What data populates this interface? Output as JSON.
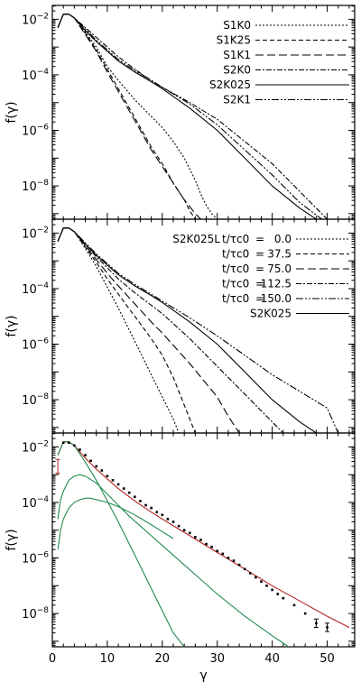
{
  "chart_data": [
    {
      "type": "line",
      "panel": "top",
      "ylabel": "f(γ)",
      "xlabel": "",
      "xlim": [
        0,
        55
      ],
      "ylim_log10": [
        -9.2,
        -1.5
      ],
      "yscale": "log",
      "yticks": [
        "10^-2",
        "10^-4",
        "10^-6",
        "10^-8"
      ],
      "yticks_exp": [
        -2,
        -4,
        -6,
        -8
      ],
      "legend_position": "top-right",
      "series": [
        {
          "name": "S1K0",
          "dash": "2,2",
          "x": [
            1,
            2,
            3,
            4,
            6,
            8,
            10,
            12,
            15,
            18,
            20,
            22,
            24,
            26,
            27,
            28,
            29,
            30
          ],
          "log10y": [
            -2.3,
            -1.82,
            -1.82,
            -1.95,
            -2.45,
            -3.0,
            -3.7,
            -4.2,
            -4.9,
            -5.5,
            -5.9,
            -6.4,
            -7.0,
            -7.8,
            -8.3,
            -8.7,
            -9.0,
            -9.2
          ]
        },
        {
          "name": "S1K25",
          "dash": "5,3",
          "x": [
            1,
            2,
            3,
            4,
            6,
            8,
            10,
            12,
            14,
            16,
            18,
            20,
            22,
            24,
            25,
            26
          ],
          "log10y": [
            -2.3,
            -1.82,
            -1.82,
            -1.95,
            -2.5,
            -3.1,
            -3.8,
            -4.5,
            -5.2,
            -5.9,
            -6.6,
            -7.2,
            -7.9,
            -8.5,
            -8.9,
            -9.2
          ]
        },
        {
          "name": "S1K1",
          "dash": "9,4",
          "x": [
            1,
            2,
            3,
            4,
            6,
            8,
            10,
            12,
            14,
            16,
            18,
            20,
            22,
            24,
            26,
            27
          ],
          "log10y": [
            -2.3,
            -1.82,
            -1.82,
            -1.95,
            -2.55,
            -3.15,
            -3.9,
            -4.6,
            -5.3,
            -6.0,
            -6.7,
            -7.3,
            -7.9,
            -8.5,
            -9.0,
            -9.2
          ]
        },
        {
          "name": "S2K0",
          "dash": "6,2,2,2",
          "x": [
            1,
            2,
            3,
            4,
            6,
            8,
            10,
            12,
            15,
            18,
            20,
            25,
            30,
            35,
            40,
            45,
            50
          ],
          "log10y": [
            -2.3,
            -1.82,
            -1.82,
            -1.95,
            -2.3,
            -2.65,
            -3.0,
            -3.35,
            -3.8,
            -4.2,
            -4.45,
            -5.0,
            -5.6,
            -6.4,
            -7.2,
            -8.2,
            -9.2
          ]
        },
        {
          "name": "S2K025",
          "dash": "none",
          "x": [
            1,
            2,
            3,
            4,
            6,
            8,
            10,
            12,
            15,
            18,
            20,
            25,
            30,
            35,
            40,
            45,
            48
          ],
          "log10y": [
            -2.3,
            -1.82,
            -1.82,
            -1.95,
            -2.4,
            -2.8,
            -3.15,
            -3.5,
            -3.9,
            -4.25,
            -4.5,
            -5.2,
            -6.0,
            -7.0,
            -8.0,
            -8.8,
            -9.2
          ]
        },
        {
          "name": "S2K1",
          "dash": "8,2,2,2,2,2",
          "x": [
            1,
            2,
            3,
            4,
            6,
            8,
            10,
            12,
            15,
            18,
            20,
            25,
            30,
            35,
            40,
            45,
            49
          ],
          "log10y": [
            -2.3,
            -1.82,
            -1.82,
            -1.95,
            -2.35,
            -2.75,
            -3.1,
            -3.45,
            -3.85,
            -4.2,
            -4.45,
            -5.05,
            -5.8,
            -6.7,
            -7.6,
            -8.6,
            -9.2
          ]
        }
      ]
    },
    {
      "type": "line",
      "panel": "middle",
      "ylabel": "f(γ)",
      "xlabel": "",
      "xlim": [
        0,
        55
      ],
      "ylim_log10": [
        -9.2,
        -1.5
      ],
      "yscale": "log",
      "yticks": [
        "10^-2",
        "10^-4",
        "10^-6",
        "10^-8"
      ],
      "yticks_exp": [
        -2,
        -4,
        -6,
        -8
      ],
      "legend_title": "S2K025L",
      "legend_position": "top-right",
      "series": [
        {
          "name": "t/τc0 = 0.0",
          "label_lhs": "t/τc0",
          "label_rhs": "0.0",
          "dash": "2,2",
          "x": [
            1,
            2,
            3,
            4,
            6,
            8,
            10,
            12,
            14,
            16,
            18,
            20,
            22,
            23
          ],
          "log10y": [
            -2.3,
            -1.82,
            -1.82,
            -1.95,
            -2.55,
            -3.2,
            -3.95,
            -4.7,
            -5.5,
            -6.3,
            -7.1,
            -7.9,
            -8.7,
            -9.2
          ]
        },
        {
          "name": "t/τc0 = 37.5",
          "label_lhs": "t/τc0",
          "label_rhs": "37.5",
          "dash": "5,3",
          "x": [
            1,
            2,
            3,
            4,
            6,
            8,
            10,
            12,
            15,
            18,
            20,
            22,
            24,
            26
          ],
          "log10y": [
            -2.3,
            -1.82,
            -1.82,
            -1.95,
            -2.5,
            -3.05,
            -3.65,
            -4.2,
            -5.0,
            -5.8,
            -6.4,
            -7.2,
            -8.2,
            -9.2
          ]
        },
        {
          "name": "t/τc0 = 75.0",
          "label_lhs": "t/τc0",
          "label_rhs": "75.0",
          "dash": "9,4",
          "x": [
            1,
            2,
            3,
            4,
            6,
            8,
            10,
            12,
            15,
            18,
            20,
            25,
            30,
            32,
            34
          ],
          "log10y": [
            -2.3,
            -1.82,
            -1.82,
            -1.95,
            -2.45,
            -2.95,
            -3.45,
            -3.9,
            -4.55,
            -5.2,
            -5.6,
            -6.7,
            -7.9,
            -8.6,
            -9.2
          ]
        },
        {
          "name": "t/τc0 = 112.5",
          "label_lhs": "t/τc0",
          "label_rhs": "112.5",
          "dash": "6,2,2,2",
          "x": [
            1,
            2,
            3,
            4,
            6,
            8,
            10,
            12,
            15,
            18,
            20,
            25,
            30,
            35,
            40,
            42
          ],
          "log10y": [
            -2.3,
            -1.82,
            -1.82,
            -1.95,
            -2.4,
            -2.85,
            -3.25,
            -3.65,
            -4.15,
            -4.6,
            -4.9,
            -5.8,
            -6.8,
            -7.8,
            -8.8,
            -9.2
          ]
        },
        {
          "name": "t/τc0 = 150.0",
          "label_lhs": "t/τc0",
          "label_rhs": "150.0",
          "dash": "8,2,2,2,2,2",
          "x": [
            1,
            2,
            3,
            4,
            6,
            8,
            10,
            12,
            15,
            18,
            20,
            25,
            30,
            35,
            40,
            45,
            50,
            52
          ],
          "log10y": [
            -2.3,
            -1.82,
            -1.82,
            -1.95,
            -2.35,
            -2.75,
            -3.1,
            -3.45,
            -3.85,
            -4.2,
            -4.45,
            -5.05,
            -5.7,
            -6.4,
            -7.1,
            -7.7,
            -8.3,
            -9.2
          ]
        },
        {
          "name": "S2K025",
          "label_lhs": "",
          "label_rhs": "S2K025",
          "dash": "none",
          "x": [
            1,
            2,
            3,
            4,
            6,
            8,
            10,
            12,
            15,
            18,
            20,
            25,
            30,
            35,
            40,
            45,
            48
          ],
          "log10y": [
            -2.3,
            -1.82,
            -1.82,
            -1.95,
            -2.4,
            -2.8,
            -3.15,
            -3.5,
            -3.9,
            -4.25,
            -4.5,
            -5.2,
            -6.0,
            -7.0,
            -8.0,
            -8.8,
            -9.2
          ]
        }
      ]
    },
    {
      "type": "line",
      "panel": "bottom",
      "ylabel": "f(γ)",
      "xlabel": "γ",
      "xlim": [
        0,
        55
      ],
      "xticks": [
        0,
        10,
        20,
        30,
        40,
        50
      ],
      "ylim_log10": [
        -9.2,
        -1.5
      ],
      "yscale": "log",
      "yticks": [
        "10^-2",
        "10^-4",
        "10^-6",
        "10^-8"
      ],
      "yticks_exp": [
        -2,
        -4,
        -6,
        -8
      ],
      "colors": {
        "fit": "#b22222",
        "component": "#1f8a4c",
        "data": "#000000"
      },
      "series": [
        {
          "role": "fit",
          "x": [
            1,
            2,
            3,
            4,
            6,
            8,
            10,
            12,
            15,
            18,
            20,
            25,
            30,
            35,
            40,
            45,
            50,
            54
          ],
          "log10y": [
            -2.3,
            -1.82,
            -1.82,
            -1.95,
            -2.4,
            -2.8,
            -3.15,
            -3.5,
            -3.95,
            -4.35,
            -4.6,
            -5.2,
            -5.8,
            -6.4,
            -7.0,
            -7.55,
            -8.1,
            -8.5
          ]
        },
        {
          "role": "component-thermal",
          "x": [
            1,
            2,
            3,
            4,
            6,
            8,
            10,
            12,
            14,
            16,
            18,
            20,
            22,
            24
          ],
          "log10y": [
            -2.3,
            -1.82,
            -1.82,
            -1.95,
            -2.55,
            -3.2,
            -3.95,
            -4.7,
            -5.5,
            -6.3,
            -7.1,
            -7.9,
            -8.7,
            -9.2
          ]
        },
        {
          "role": "component-2",
          "x": [
            1,
            1.5,
            2,
            3,
            4,
            5,
            6,
            8,
            10,
            14,
            18,
            22,
            26,
            30,
            35,
            40,
            43
          ],
          "log10y": [
            -4.6,
            -3.9,
            -3.6,
            -3.2,
            -3.05,
            -3.0,
            -3.05,
            -3.3,
            -3.7,
            -4.5,
            -5.2,
            -5.9,
            -6.6,
            -7.3,
            -8.1,
            -8.8,
            -9.2
          ]
        },
        {
          "role": "component-3",
          "x": [
            1,
            1.5,
            2,
            3,
            4,
            5,
            6,
            7,
            8,
            10,
            12,
            15,
            18,
            20,
            22
          ],
          "log10y": [
            -5.7,
            -5.0,
            -4.6,
            -4.2,
            -4.0,
            -3.9,
            -3.85,
            -3.85,
            -3.9,
            -4.0,
            -4.15,
            -4.45,
            -4.8,
            -5.05,
            -5.3
          ]
        },
        {
          "role": "data-points",
          "x": [
            2,
            3,
            4,
            5,
            6,
            7,
            8,
            9,
            10,
            11,
            12,
            13,
            14,
            15,
            16,
            17,
            18,
            19,
            20,
            21,
            22,
            23,
            24,
            25,
            26,
            27,
            28,
            29,
            30,
            31,
            32,
            33,
            34,
            35,
            36,
            37,
            38,
            39,
            40,
            41,
            42,
            44,
            46,
            48,
            50
          ],
          "log10y": [
            -1.85,
            -1.85,
            -1.95,
            -2.1,
            -2.3,
            -2.5,
            -2.7,
            -2.85,
            -3.05,
            -3.2,
            -3.35,
            -3.5,
            -3.65,
            -3.8,
            -3.95,
            -4.1,
            -4.2,
            -4.35,
            -4.45,
            -4.6,
            -4.7,
            -4.85,
            -5.0,
            -5.1,
            -5.25,
            -5.35,
            -5.5,
            -5.6,
            -5.75,
            -5.85,
            -6.0,
            -6.1,
            -6.25,
            -6.4,
            -6.55,
            -6.7,
            -6.85,
            -7.0,
            -7.15,
            -7.3,
            -7.45,
            -7.7,
            -8.0,
            -8.35,
            -8.5
          ]
        },
        {
          "role": "error-bars",
          "x": [
            1,
            48,
            50
          ],
          "log10y": [
            -2.7,
            -8.35,
            -8.5
          ],
          "err_log10": [
            0.25,
            0.15,
            0.15
          ]
        }
      ]
    }
  ]
}
